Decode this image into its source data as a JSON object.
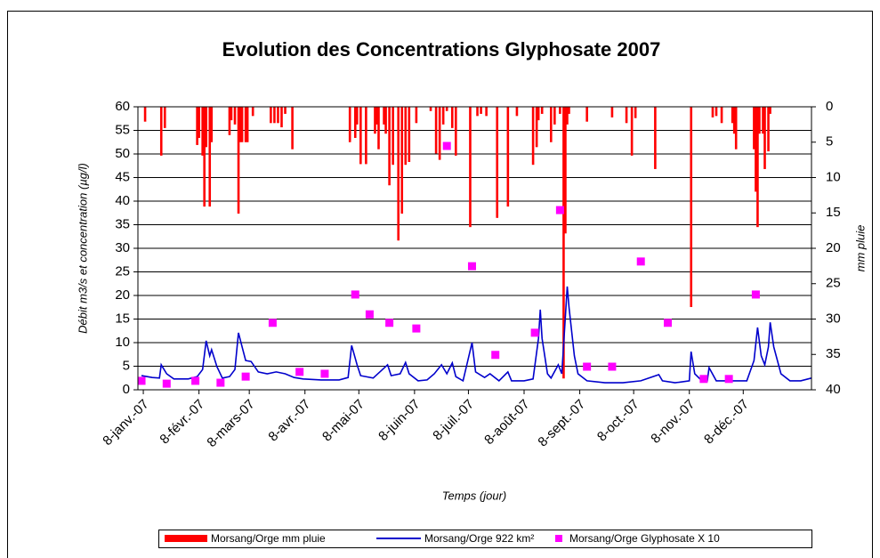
{
  "chart_data": {
    "type": "combo",
    "title": "Evolution des Concentrations Glyphosate 2007",
    "y_label": "Débit m3/s et concentration (µg/l)",
    "y2_label": "mm pluie",
    "x_label": "Temps (jour)",
    "xlim": [
      "2007-01-05",
      "2008-01-15"
    ],
    "xticks": [
      {
        "value": "2007-01-08",
        "label": "8-janv.-07"
      },
      {
        "value": "2007-02-08",
        "label": "8-févr.-07"
      },
      {
        "value": "2007-03-08",
        "label": "8-mars-07"
      },
      {
        "value": "2007-04-08",
        "label": "8-avr.-07"
      },
      {
        "value": "2007-05-08",
        "label": "8-mai-07"
      },
      {
        "value": "2007-06-08",
        "label": "8-juin-07"
      },
      {
        "value": "2007-07-08",
        "label": "8-juil.-07"
      },
      {
        "value": "2007-08-08",
        "label": "8-août-07"
      },
      {
        "value": "2007-09-08",
        "label": "8-sept.-07"
      },
      {
        "value": "2007-10-08",
        "label": "8-oct.-07"
      },
      {
        "value": "2007-11-08",
        "label": "8-nov.-07"
      },
      {
        "value": "2007-12-08",
        "label": "8-déc.-07"
      }
    ],
    "ylim": [
      0,
      60
    ],
    "yticks": [
      0,
      5,
      10,
      15,
      20,
      25,
      30,
      35,
      40,
      45,
      50,
      55,
      60
    ],
    "y2lim": [
      0,
      40
    ],
    "y2ticks": [
      0,
      5,
      10,
      15,
      20,
      25,
      30,
      35,
      40
    ],
    "y2_inverted": true,
    "grid": true,
    "legend": "bottom",
    "series": [
      {
        "name": "Morsang/Orge mm pluie",
        "type": "bar",
        "axis": "y2",
        "color": "#ff0000",
        "x": [
          "2007-01-09",
          "2007-01-18",
          "2007-01-20",
          "2007-02-07",
          "2007-02-08",
          "2007-02-10",
          "2007-02-11",
          "2007-02-12",
          "2007-02-14",
          "2007-02-15",
          "2007-02-25",
          "2007-02-26",
          "2007-02-28",
          "2007-03-02",
          "2007-03-03",
          "2007-03-04",
          "2007-03-06",
          "2007-03-07",
          "2007-03-10",
          "2007-03-20",
          "2007-03-22",
          "2007-03-24",
          "2007-03-26",
          "2007-03-28",
          "2007-04-01",
          "2007-05-03",
          "2007-05-06",
          "2007-05-07",
          "2007-05-09",
          "2007-05-12",
          "2007-05-17",
          "2007-05-18",
          "2007-05-19",
          "2007-05-22",
          "2007-05-23",
          "2007-05-25",
          "2007-05-27",
          "2007-05-30",
          "2007-06-01",
          "2007-06-03",
          "2007-06-05",
          "2007-06-09",
          "2007-06-17",
          "2007-06-20",
          "2007-06-22",
          "2007-06-24",
          "2007-06-26",
          "2007-06-29",
          "2007-07-01",
          "2007-07-09",
          "2007-07-13",
          "2007-07-15",
          "2007-07-18",
          "2007-07-24",
          "2007-07-30",
          "2007-08-04",
          "2007-08-13",
          "2007-08-15",
          "2007-08-16",
          "2007-08-18",
          "2007-08-23",
          "2007-08-25",
          "2007-08-28",
          "2007-08-30",
          "2007-08-31",
          "2007-09-01",
          "2007-09-02",
          "2007-09-12",
          "2007-09-26",
          "2007-10-04",
          "2007-10-07",
          "2007-10-09",
          "2007-10-20",
          "2007-11-09",
          "2007-11-21",
          "2007-11-23",
          "2007-11-26",
          "2007-12-02",
          "2007-12-03",
          "2007-12-04",
          "2007-12-14",
          "2007-12-15",
          "2007-12-16",
          "2007-12-17",
          "2007-12-19",
          "2007-12-20",
          "2007-12-22",
          "2007-12-23"
        ],
        "values": [
          2.1,
          6.9,
          3.0,
          5.4,
          4.4,
          6.9,
          14.1,
          5.7,
          14.1,
          5.0,
          4.0,
          1.9,
          2.5,
          15.1,
          5.0,
          5.0,
          5.0,
          5.0,
          1.3,
          2.3,
          2.3,
          2.3,
          2.9,
          1.0,
          6.0,
          5.0,
          4.4,
          2.5,
          8.1,
          8.1,
          3.8,
          2.5,
          6.0,
          2.5,
          3.8,
          11.1,
          8.2,
          18.9,
          15.1,
          8.2,
          7.8,
          2.3,
          0.6,
          6.6,
          7.5,
          2.5,
          0.6,
          3.0,
          6.9,
          17.0,
          1.3,
          1.0,
          1.3,
          15.7,
          14.1,
          1.3,
          8.2,
          5.7,
          1.9,
          1.0,
          5.0,
          2.5,
          1.0,
          38.4,
          17.9,
          2.5,
          1.0,
          2.1,
          1.5,
          2.3,
          6.9,
          1.6,
          8.8,
          28.3,
          1.5,
          1.3,
          2.3,
          2.3,
          3.8,
          6.0,
          6.0,
          12.0,
          17.0,
          3.8,
          3.8,
          8.8,
          6.3,
          1.0
        ]
      },
      {
        "name": "Morsang/Orge 922 km²",
        "type": "line",
        "color": "#0000cc",
        "x": [
          "2007-01-07",
          "2007-01-13",
          "2007-01-17",
          "2007-01-18",
          "2007-01-21",
          "2007-01-25",
          "2007-02-02",
          "2007-02-07",
          "2007-02-10",
          "2007-02-12",
          "2007-02-14",
          "2007-02-15",
          "2007-02-18",
          "2007-02-21",
          "2007-02-25",
          "2007-02-28",
          "2007-03-02",
          "2007-03-04",
          "2007-03-06",
          "2007-03-09",
          "2007-03-13",
          "2007-03-18",
          "2007-03-23",
          "2007-03-28",
          "2007-04-02",
          "2007-04-07",
          "2007-04-17",
          "2007-04-27",
          "2007-05-02",
          "2007-05-04",
          "2007-05-07",
          "2007-05-09",
          "2007-05-16",
          "2007-05-24",
          "2007-05-26",
          "2007-05-31",
          "2007-06-03",
          "2007-06-05",
          "2007-06-10",
          "2007-06-15",
          "2007-06-19",
          "2007-06-23",
          "2007-06-26",
          "2007-06-29",
          "2007-07-01",
          "2007-07-05",
          "2007-07-10",
          "2007-07-12",
          "2007-07-17",
          "2007-07-20",
          "2007-07-25",
          "2007-07-30",
          "2007-08-01",
          "2007-08-08",
          "2007-08-13",
          "2007-08-16",
          "2007-08-17",
          "2007-08-18",
          "2007-08-21",
          "2007-08-23",
          "2007-08-27",
          "2007-08-29",
          "2007-09-01",
          "2007-09-02",
          "2007-09-05",
          "2007-09-07",
          "2007-09-12",
          "2007-09-22",
          "2007-10-02",
          "2007-10-12",
          "2007-10-22",
          "2007-10-24",
          "2007-10-31",
          "2007-11-08",
          "2007-11-09",
          "2007-11-11",
          "2007-11-15",
          "2007-11-18",
          "2007-11-19",
          "2007-11-23",
          "2007-12-10",
          "2007-12-14",
          "2007-12-16",
          "2007-12-18",
          "2007-12-20",
          "2007-12-22",
          "2007-12-23",
          "2007-12-25",
          "2007-12-29",
          "2008-01-03",
          "2008-01-09",
          "2008-01-15"
        ],
        "values": [
          3.0,
          2.6,
          2.5,
          5.3,
          3.4,
          2.3,
          2.3,
          2.8,
          4.3,
          10.4,
          7.2,
          8.5,
          4.9,
          2.5,
          2.8,
          4.3,
          12.1,
          9.1,
          6.2,
          6.0,
          3.8,
          3.4,
          3.8,
          3.4,
          2.6,
          2.3,
          2.1,
          2.1,
          2.6,
          9.4,
          5.3,
          3.0,
          2.5,
          5.3,
          3.0,
          3.4,
          5.8,
          3.4,
          1.9,
          2.1,
          3.4,
          5.3,
          3.4,
          5.7,
          2.8,
          1.9,
          10.0,
          3.8,
          2.6,
          3.4,
          1.9,
          3.8,
          1.9,
          1.9,
          2.3,
          10.9,
          17.0,
          10.9,
          3.4,
          2.5,
          5.3,
          3.4,
          21.9,
          17.5,
          7.2,
          3.4,
          1.9,
          1.5,
          1.5,
          1.9,
          3.2,
          1.9,
          1.5,
          1.9,
          8.1,
          3.4,
          1.9,
          1.9,
          4.7,
          1.9,
          1.9,
          6.2,
          13.2,
          7.2,
          5.3,
          9.1,
          14.3,
          9.1,
          3.4,
          1.9,
          1.9,
          2.5
        ]
      },
      {
        "name": "Morsang/Orge Glyphosate X 10",
        "type": "scatter",
        "color": "#ff00ff",
        "x": [
          "2007-01-07",
          "2007-01-21",
          "2007-02-06",
          "2007-02-20",
          "2007-03-06",
          "2007-03-21",
          "2007-04-05",
          "2007-04-19",
          "2007-05-06",
          "2007-05-14",
          "2007-05-25",
          "2007-06-09",
          "2007-06-26",
          "2007-07-10",
          "2007-07-23",
          "2007-08-14",
          "2007-08-28",
          "2007-09-12",
          "2007-09-26",
          "2007-10-12",
          "2007-10-27",
          "2007-11-16",
          "2007-11-30",
          "2007-12-15"
        ],
        "values": [
          1.9,
          1.3,
          1.9,
          1.5,
          2.8,
          14.2,
          3.8,
          3.4,
          20.2,
          16.0,
          14.2,
          13.0,
          51.7,
          26.2,
          7.4,
          12.1,
          38.1,
          4.9,
          4.9,
          27.2,
          14.2,
          2.3,
          2.3,
          20.2
        ]
      }
    ]
  }
}
